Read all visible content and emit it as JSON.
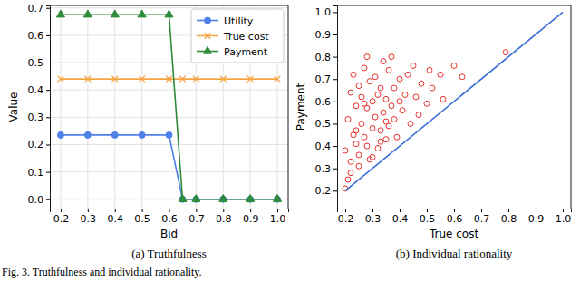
{
  "chart_data": [
    {
      "type": "line",
      "title": "(a) Truthfulness",
      "x_label": "Bid",
      "y_label": "Value",
      "x": [
        0.2,
        0.3,
        0.4,
        0.5,
        0.6,
        0.65,
        0.7,
        0.8,
        0.9,
        1.0
      ],
      "series": [
        {
          "name": "Utility",
          "color": "#4f7fe8",
          "marker": "circle",
          "values": [
            0.235,
            0.235,
            0.235,
            0.235,
            0.235,
            0,
            0,
            0,
            0,
            0
          ]
        },
        {
          "name": "True cost",
          "color": "#f5a442",
          "marker": "x",
          "values": [
            0.44,
            0.44,
            0.44,
            0.44,
            0.44,
            0.44,
            0.44,
            0.44,
            0.44,
            0.44
          ]
        },
        {
          "name": "Payment",
          "color": "#2e8b3a",
          "marker": "triangle",
          "values": [
            0.675,
            0.675,
            0.675,
            0.675,
            0.675,
            0,
            0,
            0,
            0,
            0
          ]
        }
      ],
      "xlim": [
        0.16,
        1.04
      ],
      "xticks": [
        0.2,
        0.3,
        0.4,
        0.5,
        0.6,
        0.7,
        0.8,
        0.9,
        {
          "value": 1,
          "label": "1.0"
        }
      ],
      "ylim": [
        -0.034,
        0.709
      ],
      "yticks": [
        {
          "value": 0,
          "label": "0.0"
        },
        0.1,
        0.2,
        0.3,
        0.4,
        0.5,
        0.6,
        0.7
      ],
      "grid": true,
      "legend": "upper right"
    },
    {
      "type": "scatter",
      "title": "(b) Individual rationality",
      "x_label": "True cost",
      "y_label": "Payment",
      "series": [
        {
          "type": "scatter",
          "color": "#e8322d",
          "marker": "hollow_circle",
          "x": [
            0.2,
            0.2,
            0.21,
            0.21,
            0.22,
            0.22,
            0.23,
            0.23,
            0.24,
            0.24,
            0.25,
            0.25,
            0.26,
            0.26,
            0.27,
            0.27,
            0.28,
            0.28,
            0.29,
            0.29,
            0.3,
            0.3,
            0.31,
            0.31,
            0.32,
            0.32,
            0.33,
            0.33,
            0.34,
            0.34,
            0.35,
            0.35,
            0.36,
            0.36,
            0.37,
            0.37,
            0.38,
            0.38,
            0.39,
            0.4,
            0.4,
            0.41,
            0.42,
            0.43,
            0.44,
            0.45,
            0.46,
            0.47,
            0.48,
            0.5,
            0.51,
            0.52,
            0.55,
            0.56,
            0.6,
            0.63,
            0.79,
            0.22,
            0.25,
            0.28,
            0.3,
            0.33,
            0.35,
            0.27,
            0.24
          ],
          "values": [
            0.21,
            0.38,
            0.25,
            0.52,
            0.33,
            0.64,
            0.45,
            0.72,
            0.41,
            0.58,
            0.36,
            0.67,
            0.5,
            0.62,
            0.44,
            0.75,
            0.57,
            0.8,
            0.34,
            0.69,
            0.48,
            0.6,
            0.53,
            0.71,
            0.39,
            0.63,
            0.66,
            0.47,
            0.55,
            0.78,
            0.61,
            0.43,
            0.49,
            0.74,
            0.58,
            0.8,
            0.52,
            0.66,
            0.44,
            0.6,
            0.7,
            0.56,
            0.63,
            0.72,
            0.5,
            0.76,
            0.62,
            0.54,
            0.68,
            0.59,
            0.74,
            0.66,
            0.72,
            0.61,
            0.76,
            0.71,
            0.82,
            0.28,
            0.31,
            0.4,
            0.35,
            0.42,
            0.51,
            0.59,
            0.47
          ]
        },
        {
          "type": "line",
          "color": "#3a6fd8",
          "line_style": "solid",
          "x": [
            0.2,
            1.0
          ],
          "values": [
            0.2,
            1.0
          ]
        }
      ],
      "xlim": [
        0.17,
        1.03
      ],
      "xticks": [
        0.2,
        0.3,
        0.4,
        0.5,
        0.6,
        0.7,
        0.8,
        0.9,
        {
          "value": 1,
          "label": "1.0"
        }
      ],
      "ylim": [
        0.12,
        1.03
      ],
      "yticks": [
        0.2,
        0.3,
        0.4,
        0.5,
        0.6,
        0.7,
        0.8,
        0.9,
        {
          "value": 1,
          "label": "1.0"
        }
      ],
      "grid": false
    }
  ],
  "caption": "Fig. 3. Truthfulness and individual rationality."
}
